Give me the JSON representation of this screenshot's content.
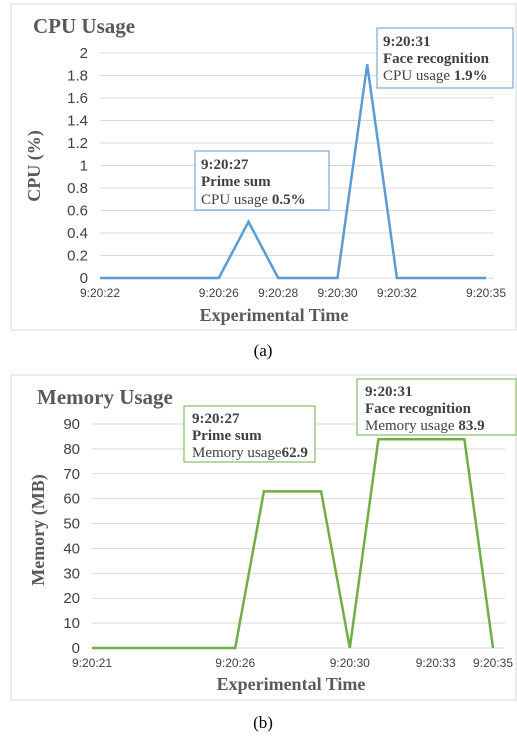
{
  "colors": {
    "cpu_line": "#5b9bd5",
    "mem_line": "#70ad47",
    "grid": "#d9d9d9",
    "frame": "#d9d9d9"
  },
  "chart_data": [
    {
      "type": "line",
      "title": "CPU Usage",
      "xlabel": "Experimental Time",
      "ylabel": "CPU (%)",
      "ylim": [
        0,
        2
      ],
      "yticks": [
        "0",
        "0.2",
        "0.4",
        "0.6",
        "0.8",
        "1",
        "1.2",
        "1.4",
        "1.6",
        "1.8",
        "2"
      ],
      "xtick_labels": [
        "9:20:22",
        "9:20:26",
        "9:20:28",
        "9:20:30",
        "9:20:32",
        "9:20:35"
      ],
      "grid": true,
      "series": [
        {
          "x": [
            "9:20:22",
            "9:20:23",
            "9:20:24",
            "9:20:25",
            "9:20:26",
            "9:20:27",
            "9:20:28",
            "9:20:29",
            "9:20:30",
            "9:20:31",
            "9:20:32",
            "9:20:33",
            "9:20:34",
            "9:20:35"
          ],
          "values": [
            0,
            0,
            0,
            0,
            0,
            0.5,
            0,
            0,
            0,
            1.9,
            0,
            0,
            0,
            0
          ]
        }
      ],
      "annotations": [
        {
          "time": "9:20:27",
          "task": "Prime sum",
          "label": "CPU usage",
          "value": "0.5%"
        },
        {
          "time": "9:20:31",
          "task": "Face recognition",
          "label": "CPU usage",
          "value": "1.9%"
        }
      ],
      "caption": "(a)"
    },
    {
      "type": "line",
      "title": "Memory Usage",
      "xlabel": "Experimental Time",
      "ylabel": "Memory (MB)",
      "ylim": [
        0,
        90
      ],
      "yticks": [
        "0",
        "10",
        "20",
        "30",
        "40",
        "50",
        "60",
        "70",
        "80",
        "90"
      ],
      "xtick_labels": [
        "9:20:21",
        "9:20:26",
        "9:20:30",
        "9:20:33",
        "9:20:35"
      ],
      "grid": true,
      "series": [
        {
          "x": [
            "9:20:21",
            "9:20:26",
            "9:20:27",
            "9:20:29",
            "9:20:30",
            "9:20:31",
            "9:20:34",
            "9:20:35"
          ],
          "values": [
            0,
            0,
            62.9,
            62.9,
            0,
            83.9,
            83.9,
            0
          ]
        }
      ],
      "annotations": [
        {
          "time": "9:20:27",
          "task": "Prime sum",
          "label": "Memory usage",
          "value": "62.9"
        },
        {
          "time": "9:20:31",
          "task": "Face recognition",
          "label": "Memory usage",
          "value": "83.9"
        }
      ],
      "caption": "(b)"
    }
  ]
}
